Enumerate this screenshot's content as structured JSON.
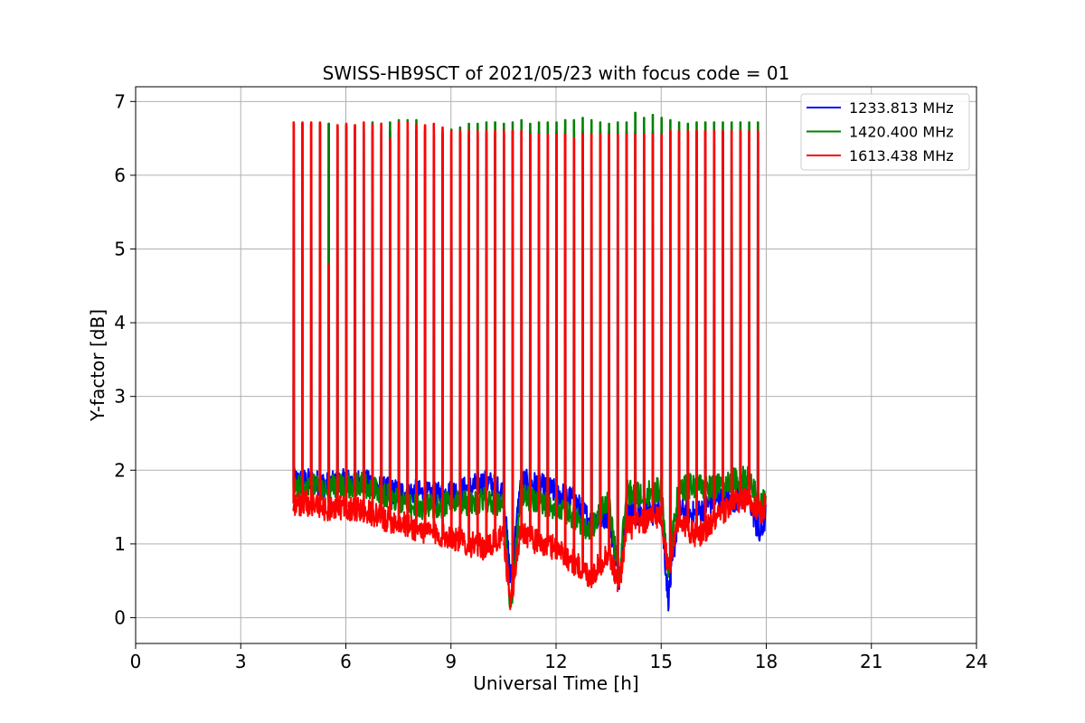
{
  "chart_data": {
    "type": "line",
    "title": "SWISS-HB9SCT of 2021/05/23 with focus code = 01",
    "xlabel": "Universal Time [h]",
    "ylabel": "Y-factor [dB]",
    "xlim": [
      0,
      24
    ],
    "ylim": [
      -0.35,
      7.2
    ],
    "xticks": [
      0,
      3,
      6,
      9,
      12,
      15,
      18,
      21,
      24
    ],
    "xtick_labels": [
      "0",
      "3",
      "6",
      "9",
      "12",
      "15",
      "18",
      "21",
      "24"
    ],
    "yticks": [
      0,
      1,
      2,
      3,
      4,
      5,
      6,
      7
    ],
    "ytick_labels": [
      "0",
      "1",
      "2",
      "3",
      "4",
      "5",
      "6",
      "7"
    ],
    "grid": true,
    "legend_position": "top-right",
    "x_range_observed": [
      4.5,
      18.0
    ],
    "calibration_spikes_x": [
      4.5,
      4.75,
      5.0,
      5.25,
      5.5,
      5.75,
      6.0,
      6.25,
      6.5,
      6.75,
      7.0,
      7.25,
      7.5,
      7.75,
      8.0,
      8.25,
      8.5,
      8.75,
      9.0,
      9.25,
      9.5,
      9.75,
      10.0,
      10.25,
      10.5,
      10.75,
      11.0,
      11.25,
      11.5,
      11.75,
      12.0,
      12.25,
      12.5,
      12.75,
      13.0,
      13.25,
      13.5,
      13.75,
      14.0,
      14.25,
      14.5,
      14.75,
      15.0,
      15.25,
      15.5,
      15.75,
      16.0,
      16.25,
      16.5,
      16.75,
      17.0,
      17.25,
      17.5,
      17.75
    ],
    "series": [
      {
        "name": "1233.813 MHz",
        "color": "#0000ff",
        "baseline_x": [
          4.5,
          5.0,
          5.5,
          6.0,
          6.5,
          7.0,
          7.5,
          8.0,
          8.5,
          9.0,
          9.5,
          10.0,
          10.5,
          10.7,
          11.0,
          11.5,
          12.0,
          12.5,
          13.0,
          13.5,
          13.8,
          14.0,
          14.5,
          15.0,
          15.2,
          15.5,
          16.0,
          16.5,
          17.0,
          17.5,
          17.8,
          18.0
        ],
        "baseline_y": [
          1.85,
          1.85,
          1.8,
          1.85,
          1.85,
          1.75,
          1.7,
          1.7,
          1.65,
          1.7,
          1.75,
          1.85,
          1.7,
          0.5,
          1.85,
          1.8,
          1.7,
          1.6,
          1.3,
          1.4,
          0.55,
          1.45,
          1.4,
          1.45,
          0.25,
          1.45,
          1.4,
          1.6,
          1.6,
          1.65,
          1.1,
          1.4
        ],
        "spike_y": [
          6.7,
          6.7,
          6.7,
          6.7,
          6.7,
          6.65,
          6.65,
          6.65,
          6.6,
          6.6,
          6.6,
          6.6,
          6.6,
          6.6,
          6.6,
          6.6,
          6.55,
          6.55,
          6.55,
          6.55,
          6.55,
          6.55,
          6.55,
          6.55,
          6.55,
          6.6,
          6.6,
          6.6,
          6.6,
          6.6,
          6.6,
          6.6,
          6.6,
          6.6,
          6.6,
          6.6,
          6.6,
          6.6,
          6.6,
          6.6,
          6.6,
          6.6,
          6.6,
          6.6,
          6.6,
          6.6,
          6.6,
          6.6,
          6.6,
          6.6,
          6.6,
          6.6,
          6.6,
          6.6
        ]
      },
      {
        "name": "1420.400 MHz",
        "color": "#008000",
        "baseline_x": [
          4.5,
          5.0,
          5.5,
          6.0,
          6.5,
          7.0,
          7.5,
          8.0,
          8.5,
          9.0,
          9.5,
          10.0,
          10.5,
          10.7,
          11.0,
          11.5,
          12.0,
          12.5,
          13.0,
          13.5,
          13.8,
          14.0,
          14.5,
          15.0,
          15.2,
          15.5,
          16.0,
          16.5,
          17.0,
          17.5,
          17.8,
          18.0
        ],
        "baseline_y": [
          1.75,
          1.8,
          1.75,
          1.8,
          1.8,
          1.7,
          1.6,
          1.5,
          1.5,
          1.55,
          1.55,
          1.6,
          1.5,
          0.1,
          1.65,
          1.55,
          1.5,
          1.35,
          1.2,
          1.6,
          0.5,
          1.7,
          1.65,
          1.75,
          0.65,
          1.75,
          1.8,
          1.75,
          1.85,
          1.9,
          1.55,
          1.6
        ],
        "spike_y": [
          6.7,
          6.7,
          6.7,
          6.7,
          6.7,
          6.68,
          6.68,
          6.68,
          6.7,
          6.72,
          6.7,
          6.72,
          6.75,
          6.75,
          6.75,
          6.65,
          6.62,
          6.6,
          6.62,
          6.65,
          6.7,
          6.7,
          6.72,
          6.72,
          6.7,
          6.72,
          6.75,
          6.7,
          6.72,
          6.72,
          6.72,
          6.75,
          6.75,
          6.78,
          6.75,
          6.72,
          6.7,
          6.72,
          6.72,
          6.85,
          6.78,
          6.82,
          6.78,
          6.75,
          6.72,
          6.7,
          6.72,
          6.72,
          6.72,
          6.72,
          6.72,
          6.72,
          6.72,
          6.72
        ]
      },
      {
        "name": "1613.438 MHz",
        "color": "#ff0000",
        "baseline_x": [
          4.5,
          5.0,
          5.5,
          6.0,
          6.5,
          7.0,
          7.5,
          8.0,
          8.5,
          9.0,
          9.5,
          10.0,
          10.5,
          10.7,
          11.0,
          11.5,
          12.0,
          12.5,
          13.0,
          13.5,
          13.8,
          14.0,
          14.5,
          15.0,
          15.2,
          15.5,
          16.0,
          16.5,
          17.0,
          17.5,
          17.8,
          18.0
        ],
        "baseline_y": [
          1.55,
          1.55,
          1.45,
          1.5,
          1.45,
          1.35,
          1.3,
          1.2,
          1.15,
          1.1,
          1.0,
          0.95,
          1.1,
          0.2,
          1.2,
          1.0,
          0.95,
          0.75,
          0.55,
          0.9,
          0.4,
          1.2,
          1.3,
          1.4,
          0.65,
          1.35,
          1.1,
          1.3,
          1.55,
          1.6,
          1.4,
          1.55
        ],
        "spike_y": [
          6.72,
          6.72,
          6.72,
          6.72,
          4.8,
          6.68,
          6.7,
          6.68,
          6.72,
          6.68,
          6.7,
          6.5,
          6.72,
          6.72,
          6.68,
          6.68,
          6.7,
          6.65,
          6.6,
          6.6,
          6.6,
          6.6,
          6.6,
          6.6,
          6.6,
          6.6,
          6.6,
          6.55,
          6.55,
          6.55,
          6.55,
          6.55,
          6.5,
          6.55,
          6.55,
          6.55,
          6.55,
          6.55,
          6.55,
          6.55,
          6.55,
          6.55,
          6.55,
          6.6,
          6.6,
          6.6,
          6.6,
          6.6,
          6.6,
          6.6,
          6.6,
          6.6,
          6.6,
          6.6
        ]
      }
    ]
  }
}
